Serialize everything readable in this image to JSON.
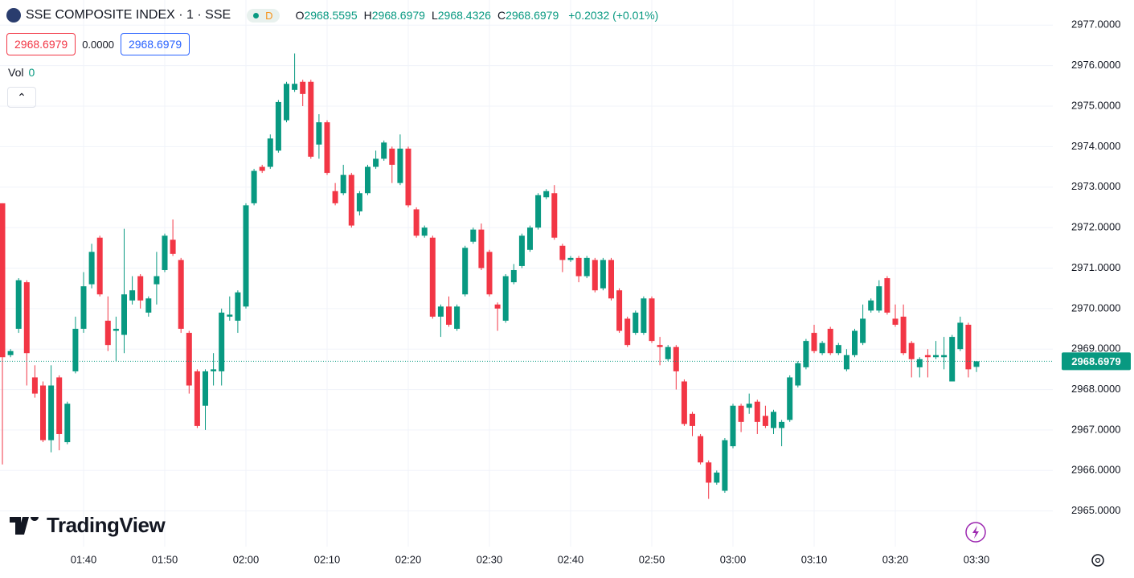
{
  "header": {
    "title": "SSE COMPOSITE INDEX · 1 · SSE",
    "badge": "D",
    "ohlc": [
      {
        "label": "O",
        "value": "2968.5595"
      },
      {
        "label": "H",
        "value": "2968.6979"
      },
      {
        "label": "L",
        "value": "2968.4326"
      },
      {
        "label": "C",
        "value": "2968.6979"
      }
    ],
    "change": "+0.2032 (+0.01%)",
    "boxes": [
      "2968.6979",
      "0.0000",
      "2968.6979"
    ],
    "volume_label": "Vol",
    "volume_value": "0",
    "logo": "TradingView"
  },
  "chart_data": {
    "type": "candlestick",
    "up_color": "#089981",
    "down_color": "#f23645",
    "grid": true,
    "x": [
      "01:30",
      "01:31",
      "01:32",
      "01:33",
      "01:34",
      "01:35",
      "01:36",
      "01:37",
      "01:38",
      "01:39",
      "01:40",
      "01:41",
      "01:42",
      "01:43",
      "01:44",
      "01:45",
      "01:46",
      "01:47",
      "01:48",
      "01:49",
      "01:50",
      "01:51",
      "01:52",
      "01:53",
      "01:54",
      "01:55",
      "01:56",
      "01:57",
      "01:58",
      "01:59",
      "02:00",
      "02:01",
      "02:02",
      "02:03",
      "02:04",
      "02:05",
      "02:06",
      "02:07",
      "02:08",
      "02:09",
      "02:10",
      "02:11",
      "02:12",
      "02:13",
      "02:14",
      "02:15",
      "02:16",
      "02:17",
      "02:18",
      "02:19",
      "02:20",
      "02:21",
      "02:22",
      "02:23",
      "02:24",
      "02:25",
      "02:26",
      "02:27",
      "02:28",
      "02:29",
      "02:30",
      "02:31",
      "02:32",
      "02:33",
      "02:34",
      "02:35",
      "02:36",
      "02:37",
      "02:38",
      "02:39",
      "02:40",
      "02:41",
      "02:42",
      "02:43",
      "02:44",
      "02:45",
      "02:46",
      "02:47",
      "02:48",
      "02:49",
      "02:50",
      "02:51",
      "02:52",
      "02:53",
      "02:54",
      "02:55",
      "02:56",
      "02:57",
      "02:58",
      "02:59",
      "03:00",
      "03:01",
      "03:02",
      "03:03",
      "03:04",
      "03:05",
      "03:06",
      "03:07",
      "03:08",
      "03:09",
      "03:10",
      "03:11",
      "03:12",
      "03:13",
      "03:14",
      "03:15",
      "03:16",
      "03:17",
      "03:18",
      "03:19",
      "03:20",
      "03:21",
      "03:22",
      "03:23",
      "03:24",
      "03:25",
      "03:26",
      "03:27",
      "03:28",
      "03:29",
      "03:30"
    ],
    "open": [
      2972.6,
      2968.85,
      2969.5,
      2970.65,
      2968.3,
      2968.1,
      2966.75,
      2968.3,
      2966.7,
      2968.45,
      2969.5,
      2970.6,
      2971.75,
      2969.7,
      2969.45,
      2969.35,
      2970.2,
      2970.8,
      2969.9,
      2970.6,
      2970.95,
      2971.7,
      2971.2,
      2969.4,
      2968.45,
      2967.6,
      2968.45,
      2968.45,
      2969.8,
      2969.7,
      2970.05,
      2972.6,
      2973.5,
      2973.5,
      2973.9,
      2974.65,
      2975.4,
      2975.6,
      2975.6,
      2974.05,
      2974.6,
      2972.9,
      2972.85,
      2973.3,
      2972.4,
      2972.85,
      2973.5,
      2973.7,
      2973.95,
      2973.1,
      2973.95,
      2972.45,
      2971.8,
      2971.75,
      2969.8,
      2970.05,
      2969.5,
      2970.35,
      2971.65,
      2971.95,
      2971.4,
      2970.1,
      2969.7,
      2970.65,
      2971.05,
      2971.45,
      2972.0,
      2972.75,
      2972.85,
      2971.55,
      2971.2,
      2971.25,
      2970.8,
      2971.2,
      2970.5,
      2971.2,
      2970.45,
      2969.75,
      2969.4,
      2969.4,
      2970.25,
      2969.1,
      2968.75,
      2969.05,
      2968.2,
      2967.4,
      2966.85,
      2966.2,
      2965.7,
      2965.5,
      2966.6,
      2967.6,
      2967.55,
      2967.7,
      2967.35,
      2967.05,
      2967.05,
      2967.25,
      2968.1,
      2968.55,
      2969.4,
      2968.9,
      2969.5,
      2968.9,
      2968.5,
      2968.85,
      2969.15,
      2969.95,
      2969.95,
      2970.75,
      2969.75,
      2969.8,
      2969.15,
      2968.55,
      2968.85,
      2968.8,
      2968.8,
      2968.2,
      2969.0,
      2969.6,
      2968.5595
    ],
    "high": [
      2972.6,
      2969.0,
      2970.75,
      2970.7,
      2968.6,
      2968.2,
      2968.6,
      2968.35,
      2967.7,
      2969.8,
      2970.9,
      2971.6,
      2971.8,
      2970.3,
      2969.8,
      2971.97,
      2970.8,
      2970.85,
      2970.3,
      2971.4,
      2971.85,
      2972.2,
      2971.25,
      2969.45,
      2968.5,
      2968.5,
      2968.9,
      2970.0,
      2970.3,
      2970.45,
      2972.6,
      2973.45,
      2973.55,
      2974.3,
      2975.15,
      2975.6,
      2976.3,
      2975.65,
      2975.65,
      2974.8,
      2974.65,
      2973.1,
      2973.55,
      2973.35,
      2972.9,
      2973.55,
      2973.9,
      2974.15,
      2974.0,
      2974.3,
      2974.0,
      2972.5,
      2972.05,
      2971.8,
      2970.1,
      2970.3,
      2970.1,
      2971.55,
      2972.0,
      2972.1,
      2971.45,
      2970.15,
      2970.85,
      2971.1,
      2971.85,
      2972.05,
      2972.85,
      2972.95,
      2973.05,
      2971.6,
      2971.3,
      2971.3,
      2971.3,
      2971.25,
      2971.25,
      2971.25,
      2970.5,
      2969.8,
      2969.95,
      2970.3,
      2970.3,
      2969.3,
      2969.1,
      2969.1,
      2968.25,
      2967.45,
      2966.9,
      2966.25,
      2966.0,
      2966.8,
      2967.65,
      2967.65,
      2967.9,
      2967.75,
      2967.6,
      2967.5,
      2967.25,
      2968.35,
      2968.7,
      2969.25,
      2969.6,
      2969.2,
      2969.55,
      2969.15,
      2969.0,
      2969.5,
      2970.1,
      2970.25,
      2970.7,
      2970.8,
      2970.1,
      2970.1,
      2969.2,
      2968.8,
      2969.0,
      2969.2,
      2969.3,
      2969.35,
      2969.8,
      2969.65,
      2968.6979
    ],
    "low": [
      2966.15,
      2968.8,
      2969.4,
      2968.1,
      2967.8,
      2966.7,
      2966.45,
      2966.5,
      2966.65,
      2968.4,
      2969.4,
      2970.5,
      2970.3,
      2968.95,
      2968.7,
      2968.9,
      2970.1,
      2970.0,
      2969.8,
      2970.1,
      2970.9,
      2971.3,
      2969.4,
      2967.9,
      2967.05,
      2967.0,
      2968.1,
      2968.1,
      2969.7,
      2969.4,
      2970.0,
      2972.55,
      2973.35,
      2973.45,
      2973.85,
      2974.6,
      2975.35,
      2975.0,
      2973.7,
      2973.7,
      2973.3,
      2972.55,
      2972.8,
      2972.0,
      2972.3,
      2972.8,
      2973.45,
      2973.65,
      2973.1,
      2973.05,
      2972.5,
      2971.75,
      2971.75,
      2969.75,
      2969.3,
      2969.55,
      2969.45,
      2970.3,
      2971.6,
      2970.95,
      2970.3,
      2969.45,
      2969.65,
      2970.6,
      2971.0,
      2971.4,
      2971.95,
      2972.7,
      2971.7,
      2970.9,
      2971.15,
      2970.65,
      2970.75,
      2970.4,
      2970.45,
      2970.2,
      2969.4,
      2969.05,
      2969.35,
      2969.35,
      2969.15,
      2968.6,
      2968.7,
      2968.0,
      2967.1,
      2966.85,
      2966.15,
      2965.3,
      2965.65,
      2965.45,
      2966.55,
      2966.95,
      2967.4,
      2966.9,
      2967.05,
      2966.9,
      2966.6,
      2967.2,
      2968.05,
      2968.5,
      2968.9,
      2968.85,
      2968.85,
      2968.85,
      2968.45,
      2968.8,
      2969.1,
      2969.9,
      2969.9,
      2969.85,
      2969.55,
      2968.85,
      2968.3,
      2968.3,
      2968.3,
      2968.75,
      2968.5,
      2968.2,
      2968.95,
      2968.3,
      2968.4326
    ],
    "close": [
      2968.8,
      2968.95,
      2970.7,
      2968.9,
      2967.9,
      2966.75,
      2968.1,
      2966.9,
      2967.65,
      2969.5,
      2970.55,
      2971.4,
      2970.35,
      2969.1,
      2969.5,
      2970.35,
      2970.45,
      2970.2,
      2970.25,
      2970.8,
      2971.8,
      2971.35,
      2969.5,
      2968.1,
      2967.1,
      2968.45,
      2968.5,
      2969.9,
      2969.85,
      2970.4,
      2972.55,
      2973.4,
      2973.4,
      2974.2,
      2975.1,
      2975.55,
      2975.55,
      2975.3,
      2973.75,
      2974.6,
      2973.35,
      2972.6,
      2973.3,
      2972.05,
      2972.85,
      2973.5,
      2973.7,
      2974.1,
      2973.55,
      2973.95,
      2972.55,
      2971.8,
      2972.0,
      2969.8,
      2970.05,
      2969.6,
      2970.05,
      2971.5,
      2971.95,
      2971.0,
      2970.35,
      2970.0,
      2970.8,
      2970.95,
      2971.8,
      2972.0,
      2972.8,
      2972.9,
      2971.75,
      2971.2,
      2971.25,
      2970.8,
      2971.25,
      2970.45,
      2971.2,
      2970.25,
      2969.45,
      2969.1,
      2969.9,
      2970.25,
      2969.2,
      2969.05,
      2969.05,
      2968.45,
      2967.15,
      2967.1,
      2966.2,
      2965.7,
      2965.95,
      2966.75,
      2967.6,
      2967.2,
      2967.65,
      2967.2,
      2967.1,
      2967.45,
      2967.2,
      2968.3,
      2968.65,
      2969.2,
      2968.95,
      2969.15,
      2968.9,
      2969.1,
      2968.85,
      2969.45,
      2969.75,
      2970.2,
      2970.55,
      2969.9,
      2969.6,
      2968.9,
      2968.75,
      2968.75,
      2968.8,
      2968.85,
      2968.85,
      2969.3,
      2969.65,
      2968.5,
      2968.6979
    ],
    "xticks": [
      "01:40",
      "01:50",
      "02:00",
      "02:10",
      "02:20",
      "02:30",
      "02:40",
      "02:50",
      "03:00",
      "03:10",
      "03:20",
      "03:30"
    ],
    "ylim": [
      2964.12,
      2977.62
    ],
    "yticks": [
      {
        "value": 2965,
        "label": "2965.0000"
      },
      {
        "value": 2966,
        "label": "2966.0000"
      },
      {
        "value": 2967,
        "label": "2967.0000"
      },
      {
        "value": 2968,
        "label": "2968.0000"
      },
      {
        "value": 2969,
        "label": "2969.0000"
      },
      {
        "value": 2970,
        "label": "2970.0000"
      },
      {
        "value": 2971,
        "label": "2971.0000"
      },
      {
        "value": 2972,
        "label": "2972.0000"
      },
      {
        "value": 2973,
        "label": "2973.0000"
      },
      {
        "value": 2974,
        "label": "2974.0000"
      },
      {
        "value": 2975,
        "label": "2975.0000"
      },
      {
        "value": 2976,
        "label": "2976.0000"
      },
      {
        "value": 2977,
        "label": "2977.0000"
      }
    ],
    "last_price": {
      "value": 2968.6979,
      "label": "2968.6979"
    }
  }
}
